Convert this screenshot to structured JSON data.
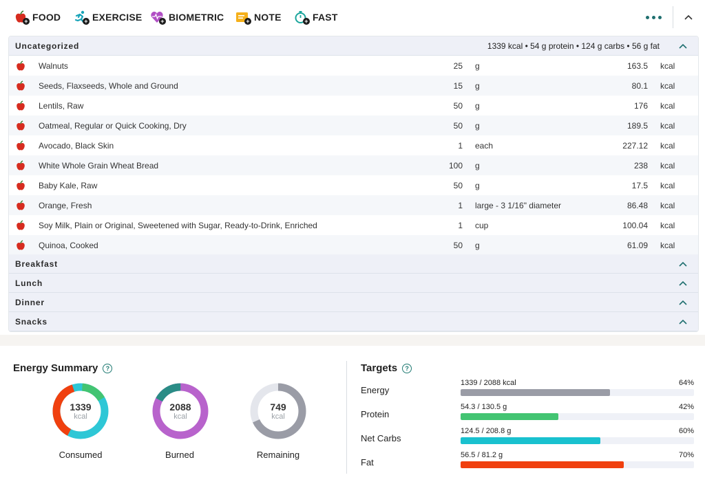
{
  "toolbar": {
    "buttons": [
      {
        "label": "FOOD",
        "icon": "apple-add-icon",
        "color": "#d62c1f"
      },
      {
        "label": "EXERCISE",
        "icon": "runner-add-icon",
        "color": "#17a3b8"
      },
      {
        "label": "BIOMETRIC",
        "icon": "heart-pulse-add-icon",
        "color": "#b14fc5"
      },
      {
        "label": "NOTE",
        "icon": "note-add-icon",
        "color": "#f5b01a"
      },
      {
        "label": "FAST",
        "icon": "stopwatch-add-icon",
        "color": "#1aa59c"
      }
    ],
    "more_icon": "more-dots-icon",
    "collapse_icon": "chevron-up-icon"
  },
  "diary": {
    "uncategorized": {
      "name": "Uncategorized",
      "summary": "1339 kcal • 54 g protein • 124 g carbs • 56 g fat",
      "items": [
        {
          "name": "Walnuts",
          "amount": "25",
          "unit": "g",
          "kcal": "163.5",
          "kunit": "kcal"
        },
        {
          "name": "Seeds, Flaxseeds, Whole and Ground",
          "amount": "15",
          "unit": "g",
          "kcal": "80.1",
          "kunit": "kcal"
        },
        {
          "name": "Lentils, Raw",
          "amount": "50",
          "unit": "g",
          "kcal": "176",
          "kunit": "kcal"
        },
        {
          "name": "Oatmeal, Regular or Quick Cooking, Dry",
          "amount": "50",
          "unit": "g",
          "kcal": "189.5",
          "kunit": "kcal"
        },
        {
          "name": "Avocado, Black Skin",
          "amount": "1",
          "unit": "each",
          "kcal": "227.12",
          "kunit": "kcal"
        },
        {
          "name": "White Whole Grain Wheat Bread",
          "amount": "100",
          "unit": "g",
          "kcal": "238",
          "kunit": "kcal"
        },
        {
          "name": "Baby Kale, Raw",
          "amount": "50",
          "unit": "g",
          "kcal": "17.5",
          "kunit": "kcal"
        },
        {
          "name": "Orange, Fresh",
          "amount": "1",
          "unit": "large - 3 1/16\" diameter",
          "kcal": "86.48",
          "kunit": "kcal"
        },
        {
          "name": "Soy Milk, Plain or Original, Sweetened with Sugar, Ready-to-Drink, Enriched",
          "amount": "1",
          "unit": "cup",
          "kcal": "100.04",
          "kunit": "kcal"
        },
        {
          "name": "Quinoa, Cooked",
          "amount": "50",
          "unit": "g",
          "kcal": "61.09",
          "kunit": "kcal"
        }
      ]
    },
    "meals": [
      {
        "name": "Breakfast"
      },
      {
        "name": "Lunch"
      },
      {
        "name": "Dinner"
      },
      {
        "name": "Snacks"
      }
    ]
  },
  "energy_summary": {
    "title": "Energy Summary",
    "help_icon": "help-circle-icon",
    "donuts": [
      {
        "label": "Consumed",
        "value": "1339",
        "unit": "kcal"
      },
      {
        "label": "Burned",
        "value": "2088",
        "unit": "kcal"
      },
      {
        "label": "Remaining",
        "value": "749",
        "unit": "kcal"
      }
    ]
  },
  "targets": {
    "title": "Targets",
    "help_icon": "help-circle-icon",
    "items": [
      {
        "label": "Energy",
        "amount": "1339 / 2088 kcal",
        "pct": "64%",
        "fraction": 0.64,
        "color": "#9a9ca6"
      },
      {
        "label": "Protein",
        "amount": "54.3 / 130.5 g",
        "pct": "42%",
        "fraction": 0.42,
        "color": "#43c472"
      },
      {
        "label": "Net Carbs",
        "amount": "124.5 / 208.8 g",
        "pct": "60%",
        "fraction": 0.6,
        "color": "#19c1cf"
      },
      {
        "label": "Fat",
        "amount": "56.5 / 81.2 g",
        "pct": "70%",
        "fraction": 0.7,
        "color": "#f0400f"
      }
    ]
  }
}
